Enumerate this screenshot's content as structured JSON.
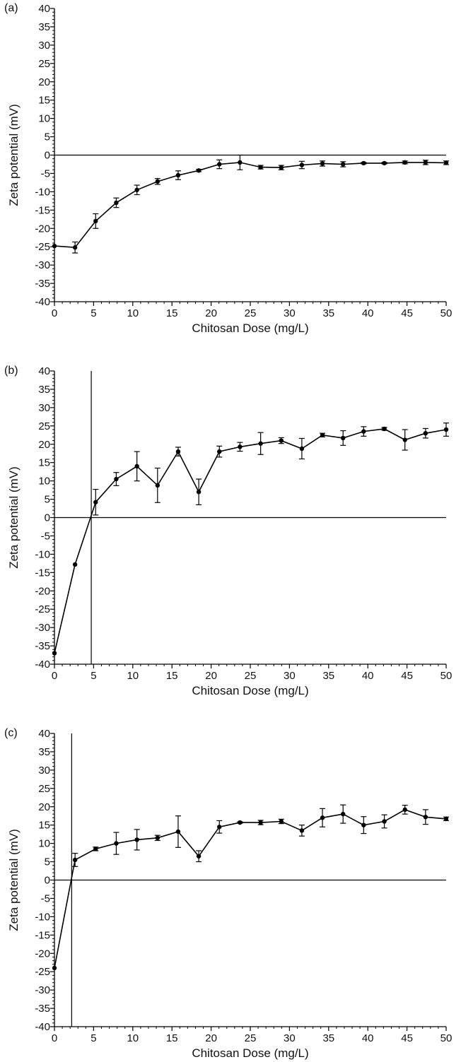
{
  "chart_data": [
    {
      "type": "line",
      "panel_label": "(a)",
      "xlabel": "Chitosan Dose (mg/L)",
      "ylabel": "Zeta potential (mV)",
      "xlim": [
        0,
        50
      ],
      "ylim": [
        -40,
        40
      ],
      "x_ticks": [
        0,
        5,
        10,
        15,
        20,
        25,
        30,
        35,
        40,
        45,
        50
      ],
      "y_ticks": [
        -40,
        -35,
        -30,
        -25,
        -20,
        -15,
        -10,
        -5,
        0,
        5,
        10,
        15,
        20,
        25,
        30,
        35,
        40
      ],
      "series": [
        {
          "x": [
            0,
            2.63,
            5.26,
            7.89,
            10.53,
            13.16,
            15.79,
            18.42,
            21.05,
            23.68,
            26.32,
            28.95,
            31.58,
            34.21,
            36.84,
            39.47,
            42.11,
            44.74,
            47.37,
            50
          ],
          "y": [
            -24.8,
            -25.2,
            -18,
            -13,
            -9.5,
            -7.2,
            -5.5,
            -4.2,
            -2.5,
            -2,
            -3.3,
            -3.4,
            -2.7,
            -2.3,
            -2.5,
            -2.2,
            -2.2,
            -2,
            -2,
            -2.1
          ],
          "error": [
            0,
            1.5,
            2,
            1.3,
            1.3,
            0.8,
            1.2,
            0.3,
            1.2,
            2,
            0.5,
            0.6,
            1,
            0.7,
            0.7,
            0.2,
            0.2,
            0.4,
            0.6,
            0.5
          ]
        }
      ],
      "reference_lines": {
        "horizontal": 0
      }
    },
    {
      "type": "line",
      "panel_label": "(b)",
      "xlabel": "Chitosan Dose (mg/L)",
      "ylabel": "Zeta potential (mV)",
      "xlim": [
        0,
        50
      ],
      "ylim": [
        -40,
        40
      ],
      "x_ticks": [
        0,
        5,
        10,
        15,
        20,
        25,
        30,
        35,
        40,
        45,
        50
      ],
      "y_ticks": [
        -40,
        -35,
        -30,
        -25,
        -20,
        -15,
        -10,
        -5,
        0,
        5,
        10,
        15,
        20,
        25,
        30,
        35,
        40
      ],
      "series": [
        {
          "x": [
            0,
            2.63,
            5.26,
            7.89,
            10.53,
            13.16,
            15.79,
            18.42,
            21.05,
            23.68,
            26.32,
            28.95,
            31.58,
            34.21,
            36.84,
            39.47,
            42.11,
            44.74,
            47.37,
            50
          ],
          "y": [
            -37,
            -12.8,
            4.2,
            10.5,
            14,
            8.8,
            18,
            7,
            18,
            19.3,
            20.2,
            21,
            18.8,
            22.5,
            21.7,
            23.5,
            24.2,
            21.2,
            23,
            24
          ],
          "error": [
            0,
            0,
            3.5,
            1.8,
            4,
            4.7,
            1.2,
            3.5,
            1.5,
            1.2,
            3,
            0.8,
            2.8,
            0.5,
            2,
            1.3,
            0.4,
            2.8,
            1.3,
            1.8
          ]
        }
      ],
      "reference_lines": {
        "horizontal": 0,
        "vertical": 4.7
      }
    },
    {
      "type": "line",
      "panel_label": "(c)",
      "xlabel": "Chitosan Dose (mg/L)",
      "ylabel": "Zeta potential (mV)",
      "xlim": [
        0,
        50
      ],
      "ylim": [
        -40,
        40
      ],
      "x_ticks": [
        0,
        5,
        10,
        15,
        20,
        25,
        30,
        35,
        40,
        45,
        50
      ],
      "y_ticks": [
        -40,
        -35,
        -30,
        -25,
        -20,
        -15,
        -10,
        -5,
        0,
        5,
        10,
        15,
        20,
        25,
        30,
        35,
        40
      ],
      "series": [
        {
          "x": [
            0,
            2.63,
            5.26,
            7.89,
            10.53,
            13.16,
            15.79,
            18.42,
            21.05,
            23.68,
            26.32,
            28.95,
            31.58,
            34.21,
            36.84,
            39.47,
            42.11,
            44.74,
            47.37,
            50
          ],
          "y": [
            -24,
            5.5,
            8.5,
            10,
            11,
            11.5,
            13.2,
            6.5,
            14.5,
            15.7,
            15.7,
            16,
            13.5,
            17,
            18,
            15,
            16,
            19.2,
            17.2,
            16.7
          ],
          "error": [
            0,
            1.8,
            0.5,
            3,
            2.8,
            0.7,
            4.3,
            1.5,
            1.7,
            0.2,
            0.6,
            0.6,
            1.5,
            2.5,
            2.5,
            2.3,
            1.8,
            1.2,
            2,
            0.5
          ]
        }
      ],
      "reference_lines": {
        "horizontal": 0,
        "vertical": 2.2
      }
    }
  ]
}
